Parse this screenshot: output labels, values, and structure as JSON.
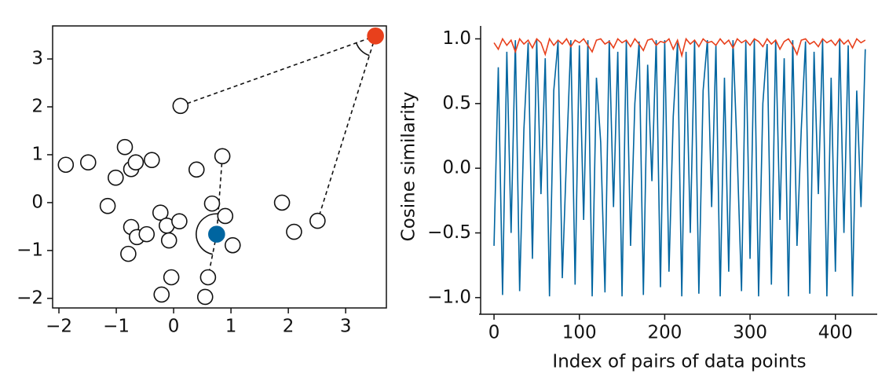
{
  "chart_data": [
    {
      "type": "scatter",
      "xlim": [
        -2.11,
        3.71
      ],
      "ylim": [
        -2.2,
        3.69
      ],
      "xticks": [
        {
          "value": -2,
          "label": "−2"
        },
        {
          "value": -1,
          "label": "−1"
        },
        0,
        1,
        2,
        3
      ],
      "yticks": [
        {
          "value": -2,
          "label": "−2"
        },
        {
          "value": -1,
          "label": "−1"
        },
        0,
        1,
        2,
        3
      ],
      "series": [
        {
          "color": "#111111",
          "filled": false,
          "x": [
            -1.88,
            -1.49,
            -0.85,
            -0.74,
            -0.66,
            -1.01,
            -0.38,
            -1.15,
            -0.74,
            -0.79,
            -0.64,
            -0.47,
            -0.23,
            -0.12,
            0.1,
            -0.08,
            -0.04,
            -0.21,
            0.12,
            0.4,
            0.85,
            0.67,
            0.9,
            1.03,
            0.6,
            0.55,
            1.89,
            2.1,
            2.51
          ],
          "y": [
            0.79,
            0.84,
            1.16,
            0.7,
            0.84,
            0.52,
            0.89,
            -0.07,
            -0.51,
            -1.07,
            -0.72,
            -0.66,
            -0.21,
            -0.48,
            -0.39,
            -0.79,
            -1.56,
            -1.92,
            2.02,
            0.69,
            0.97,
            -0.02,
            -0.28,
            -0.89,
            -1.56,
            -1.97,
            0.0,
            -0.61,
            -0.38
          ]
        },
        {
          "color": "#e8401c",
          "filled": true,
          "x": [
            3.52
          ],
          "y": [
            3.48
          ]
        },
        {
          "color": "#0065a0",
          "filled": true,
          "x": [
            0.75
          ],
          "y": [
            -0.66
          ]
        }
      ],
      "angles": [
        {
          "x": [
            0.12,
            3.52,
            2.51
          ],
          "y": [
            2.02,
            3.48,
            -0.38
          ]
        },
        {
          "x": [
            0.85,
            0.75,
            0.6
          ],
          "y": [
            0.97,
            -0.66,
            -1.56
          ]
        }
      ]
    },
    {
      "type": "line",
      "xlabel": "Index of pairs of data points",
      "ylabel": "Cosine similarity",
      "xlim": [
        -15.7,
        449
      ],
      "ylim": [
        -1.08,
        1.1
      ],
      "xticks": [
        0,
        100,
        200,
        300,
        400
      ],
      "yticks": [
        {
          "value": -1,
          "label": "−1.0"
        },
        {
          "value": -0.5,
          "label": "−0.5"
        },
        {
          "value": 0,
          "label": "0.0"
        },
        {
          "value": 0.5,
          "label": "0.5"
        },
        {
          "value": 1,
          "label": "1.0"
        }
      ],
      "x": [
        0,
        5,
        10,
        15,
        20,
        25,
        30,
        35,
        40,
        45,
        50,
        55,
        60,
        65,
        70,
        75,
        80,
        85,
        90,
        95,
        100,
        105,
        110,
        115,
        120,
        125,
        130,
        135,
        140,
        145,
        150,
        155,
        160,
        165,
        170,
        175,
        180,
        185,
        190,
        195,
        200,
        205,
        210,
        215,
        220,
        225,
        230,
        235,
        240,
        245,
        250,
        255,
        260,
        265,
        270,
        275,
        280,
        285,
        290,
        295,
        300,
        305,
        310,
        315,
        320,
        325,
        330,
        335,
        340,
        345,
        350,
        355,
        360,
        365,
        370,
        375,
        380,
        385,
        390,
        395,
        400,
        405,
        410,
        415,
        420,
        425,
        430,
        435
      ],
      "series": [
        {
          "color": "#0065a0",
          "values": [
            -0.6,
            0.78,
            -0.98,
            0.9,
            -0.5,
            0.99,
            -0.95,
            0.3,
            0.97,
            -0.7,
            0.99,
            -0.2,
            0.85,
            -0.99,
            0.6,
            0.98,
            -0.85,
            0.1,
            0.99,
            -0.9,
            0.95,
            -0.4,
            0.99,
            -0.99,
            0.7,
            0.2,
            -0.96,
            0.99,
            -0.3,
            0.9,
            -0.99,
            0.99,
            -0.6,
            0.5,
            0.98,
            -0.98,
            0.8,
            -0.1,
            0.99,
            -0.92,
            0.99,
            -0.8,
            0.4,
            0.97,
            -0.99,
            0.9,
            -0.5,
            0.99,
            -0.97,
            0.6,
            0.99,
            -0.3,
            0.95,
            -0.99,
            0.7,
            -0.8,
            0.99,
            0.1,
            -0.95,
            0.98,
            -0.7,
            0.99,
            -0.99,
            0.5,
            0.96,
            -0.9,
            0.99,
            -0.4,
            0.85,
            -0.99,
            0.99,
            -0.6,
            0.3,
            0.98,
            -0.97,
            0.9,
            -0.2,
            0.99,
            -0.99,
            0.7,
            -0.8,
            0.99,
            -0.5,
            0.95,
            -0.99,
            0.6,
            -0.3,
            0.92
          ]
        },
        {
          "color": "#e8401c",
          "values": [
            0.97,
            0.92,
            1.0,
            0.95,
            0.99,
            0.9,
            1.0,
            0.96,
            0.99,
            0.93,
            1.0,
            0.97,
            0.88,
            1.0,
            0.95,
            0.99,
            0.96,
            1.0,
            0.94,
            0.99,
            0.97,
            1.0,
            0.95,
            0.9,
            0.99,
            1.0,
            0.96,
            0.98,
            0.93,
            1.0,
            0.97,
            0.99,
            0.94,
            1.0,
            0.96,
            0.91,
            0.99,
            1.0,
            0.95,
            0.98,
            0.97,
            1.0,
            0.92,
            0.99,
            0.87,
            1.0,
            0.96,
            0.99,
            0.94,
            1.0,
            0.97,
            0.98,
            0.95,
            1.0,
            0.96,
            0.99,
            0.93,
            1.0,
            0.97,
            0.99,
            0.95,
            1.0,
            0.98,
            0.94,
            1.0,
            0.96,
            0.99,
            0.92,
            0.98,
            1.0,
            0.95,
            0.88,
            0.99,
            1.0,
            0.96,
            0.98,
            0.94,
            1.0,
            0.97,
            0.99,
            0.95,
            1.0,
            0.96,
            0.99,
            0.93,
            1.0,
            0.97,
            0.99
          ]
        }
      ]
    }
  ]
}
